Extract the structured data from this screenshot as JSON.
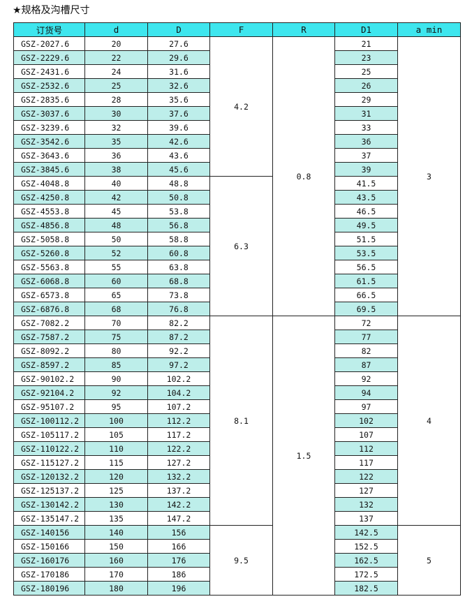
{
  "title": "★规格及沟槽尺寸",
  "header": [
    "订货号",
    "d",
    "D",
    "F",
    "R",
    "D1",
    "a min"
  ],
  "rows": [
    [
      "GSZ-2027.6",
      "20",
      "27.6",
      "21"
    ],
    [
      "GSZ-2229.6",
      "22",
      "29.6",
      "23"
    ],
    [
      "GSZ-2431.6",
      "24",
      "31.6",
      "25"
    ],
    [
      "GSZ-2532.6",
      "25",
      "32.6",
      "26"
    ],
    [
      "GSZ-2835.6",
      "28",
      "35.6",
      "29"
    ],
    [
      "GSZ-3037.6",
      "30",
      "37.6",
      "31"
    ],
    [
      "GSZ-3239.6",
      "32",
      "39.6",
      "33"
    ],
    [
      "GSZ-3542.6",
      "35",
      "42.6",
      "36"
    ],
    [
      "GSZ-3643.6",
      "36",
      "43.6",
      "37"
    ],
    [
      "GSZ-3845.6",
      "38",
      "45.6",
      "39"
    ],
    [
      "GSZ-4048.8",
      "40",
      "48.8",
      "41.5"
    ],
    [
      "GSZ-4250.8",
      "42",
      "50.8",
      "43.5"
    ],
    [
      "GSZ-4553.8",
      "45",
      "53.8",
      "46.5"
    ],
    [
      "GSZ-4856.8",
      "48",
      "56.8",
      "49.5"
    ],
    [
      "GSZ-5058.8",
      "50",
      "58.8",
      "51.5"
    ],
    [
      "GSZ-5260.8",
      "52",
      "60.8",
      "53.5"
    ],
    [
      "GSZ-5563.8",
      "55",
      "63.8",
      "56.5"
    ],
    [
      "GSZ-6068.8",
      "60",
      "68.8",
      "61.5"
    ],
    [
      "GSZ-6573.8",
      "65",
      "73.8",
      "66.5"
    ],
    [
      "GSZ-6876.8",
      "68",
      "76.8",
      "69.5"
    ],
    [
      "GSZ-7082.2",
      "70",
      "82.2",
      "72"
    ],
    [
      "GSZ-7587.2",
      "75",
      "87.2",
      "77"
    ],
    [
      "GSZ-8092.2",
      "80",
      "92.2",
      "82"
    ],
    [
      "GSZ-8597.2",
      "85",
      "97.2",
      "87"
    ],
    [
      "GSZ-90102.2",
      "90",
      "102.2",
      "92"
    ],
    [
      "GSZ-92104.2",
      "92",
      "104.2",
      "94"
    ],
    [
      "GSZ-95107.2",
      "95",
      "107.2",
      "97"
    ],
    [
      "GSZ-100112.2",
      "100",
      "112.2",
      "102"
    ],
    [
      "GSZ-105117.2",
      "105",
      "117.2",
      "107"
    ],
    [
      "GSZ-110122.2",
      "110",
      "122.2",
      "112"
    ],
    [
      "GSZ-115127.2",
      "115",
      "127.2",
      "117"
    ],
    [
      "GSZ-120132.2",
      "120",
      "132.2",
      "122"
    ],
    [
      "GSZ-125137.2",
      "125",
      "137.2",
      "127"
    ],
    [
      "GSZ-130142.2",
      "130",
      "142.2",
      "132"
    ],
    [
      "GSZ-135147.2",
      "135",
      "147.2",
      "137"
    ],
    [
      "GSZ-140156",
      "140",
      "156",
      "142.5"
    ],
    [
      "GSZ-150166",
      "150",
      "166",
      "152.5"
    ],
    [
      "GSZ-160176",
      "160",
      "176",
      "162.5"
    ],
    [
      "GSZ-170186",
      "170",
      "186",
      "172.5"
    ],
    [
      "GSZ-180196",
      "180",
      "196",
      "182.5"
    ]
  ],
  "F_groups": [
    {
      "value": "4.2",
      "span": 10
    },
    {
      "value": "6.3",
      "span": 10
    },
    {
      "value": "8.1",
      "span": 15
    },
    {
      "value": "9.5",
      "span": 5
    }
  ],
  "R_groups": [
    {
      "value": "0.8",
      "span": 20
    },
    {
      "value": "1.5",
      "span": 20
    }
  ],
  "amin_groups": [
    {
      "value": "3",
      "span": 20
    },
    {
      "value": "4",
      "span": 15
    },
    {
      "value": "5",
      "span": 5
    }
  ],
  "colors": {
    "header": "#3ee6ee",
    "stripe": "#bdeeea"
  }
}
